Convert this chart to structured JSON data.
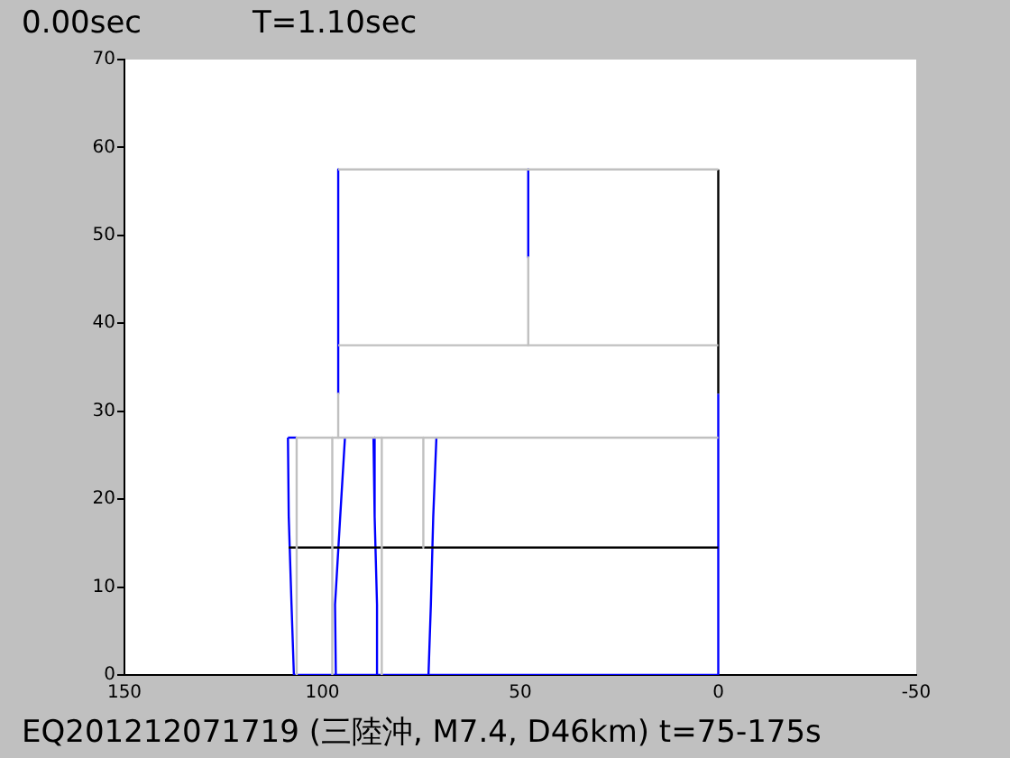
{
  "chart_data": {
    "type": "line",
    "title": "T=1.10sec",
    "annotations": [
      "0.00sec",
      "EQ201212071719 (三陸沖, M7.4, D46km) t=75-175s"
    ],
    "xlim": [
      150,
      -50
    ],
    "xticks": [
      150,
      100,
      50,
      0,
      -50
    ],
    "ylim": [
      0,
      70
    ],
    "yticks": [
      0,
      10,
      20,
      30,
      40,
      50,
      60,
      70
    ],
    "legend": false,
    "marker": "none",
    "line_style": "solid",
    "series": [
      {
        "color": "#c0c0c0",
        "x": [
          96,
          0
        ],
        "values": [
          57.5,
          57.5
        ]
      },
      {
        "color": "#c0c0c0",
        "x": [
          96,
          0
        ],
        "values": [
          37.5,
          37.5
        ]
      },
      {
        "color": "#c0c0c0",
        "x": [
          106.5,
          0
        ],
        "values": [
          27,
          27
        ]
      },
      {
        "color": "#c0c0c0",
        "x": [
          96,
          96
        ],
        "values": [
          32,
          27
        ]
      },
      {
        "color": "#c0c0c0",
        "x": [
          48,
          48
        ],
        "values": [
          47.5,
          37.5
        ]
      },
      {
        "color": "#c0c0c0",
        "x": [
          106.5,
          106.5
        ],
        "values": [
          27,
          0
        ]
      },
      {
        "color": "#c0c0c0",
        "x": [
          97.5,
          97.5
        ],
        "values": [
          27,
          0
        ]
      },
      {
        "color": "#c0c0c0",
        "x": [
          85,
          85
        ],
        "values": [
          27,
          0
        ]
      },
      {
        "color": "#c0c0c0",
        "x": [
          74.5,
          74.5
        ],
        "values": [
          27,
          14.5
        ]
      },
      {
        "color": "#000000",
        "x": [
          108.5,
          0
        ],
        "values": [
          14.5,
          14.5
        ]
      },
      {
        "color": "#000000",
        "x": [
          0,
          0
        ],
        "values": [
          32,
          57.5
        ]
      },
      {
        "color": "#0000ff",
        "x": [
          108.7,
          106.5
        ],
        "values": [
          27,
          27
        ]
      },
      {
        "color": "#0000ff",
        "x": [
          108.7,
          108.5,
          107.8,
          107.2
        ],
        "values": [
          27,
          18,
          8,
          0
        ]
      },
      {
        "color": "#0000ff",
        "x": [
          107.2,
          0
        ],
        "values": [
          0,
          0
        ]
      },
      {
        "color": "#0000ff",
        "x": [
          0,
          0
        ],
        "values": [
          0,
          32
        ]
      },
      {
        "color": "#0000ff",
        "x": [
          96.6,
          96.8,
          95.5,
          94.3
        ],
        "values": [
          0,
          8,
          18,
          27
        ]
      },
      {
        "color": "#0000ff",
        "x": [
          87.1,
          86.8,
          86.2,
          86.2
        ],
        "values": [
          27,
          18,
          8,
          0
        ]
      },
      {
        "color": "#0000ff",
        "x": [
          73.2,
          72.6,
          72,
          71.2
        ],
        "values": [
          0,
          8,
          18,
          27
        ]
      },
      {
        "color": "#0000ff",
        "x": [
          96,
          96
        ],
        "values": [
          57.5,
          32
        ]
      },
      {
        "color": "#0000ff",
        "x": [
          48,
          48
        ],
        "values": [
          57.5,
          47.5
        ]
      }
    ]
  }
}
